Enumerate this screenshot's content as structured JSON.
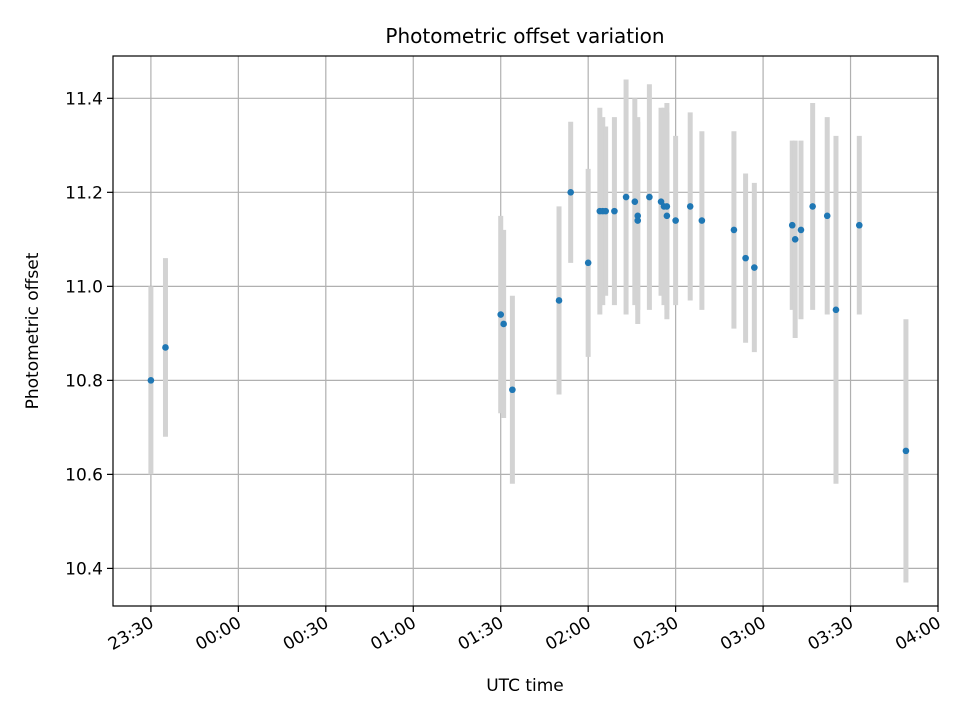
{
  "chart_data": {
    "type": "scatter",
    "title": "Photometric offset variation",
    "xlabel": "UTC time",
    "ylabel": "Photometric offset",
    "x_tick_labels": [
      "23:30",
      "00:00",
      "00:30",
      "01:00",
      "01:30",
      "02:00",
      "02:30",
      "03:00",
      "03:30",
      "04:00"
    ],
    "y_ticks": [
      10.4,
      10.6,
      10.8,
      11.0,
      11.2,
      11.4
    ],
    "y_tick_labels": [
      "10.4",
      "10.6",
      "10.8",
      "11.0",
      "11.2",
      "11.4"
    ],
    "xlim": [
      "23:17",
      "04:00"
    ],
    "ylim": [
      10.32,
      11.49
    ],
    "grid": true,
    "colors": {
      "points": "#1f77b4",
      "errorbars": "#d3d3d3",
      "grid": "#b0b0b0"
    },
    "points": [
      {
        "x": "23:30",
        "y": 10.8,
        "err": 0.2
      },
      {
        "x": "23:35",
        "y": 10.87,
        "err": 0.19
      },
      {
        "x": "01:30",
        "y": 10.94,
        "err": 0.21
      },
      {
        "x": "01:31",
        "y": 10.92,
        "err": 0.2
      },
      {
        "x": "01:34",
        "y": 10.78,
        "err": 0.2
      },
      {
        "x": "01:50",
        "y": 10.97,
        "err": 0.2
      },
      {
        "x": "01:54",
        "y": 11.2,
        "err": 0.15
      },
      {
        "x": "02:00",
        "y": 11.05,
        "err": 0.2
      },
      {
        "x": "02:04",
        "y": 11.16,
        "err": 0.22
      },
      {
        "x": "02:05",
        "y": 11.16,
        "err": 0.2
      },
      {
        "x": "02:06",
        "y": 11.16,
        "err": 0.18
      },
      {
        "x": "02:09",
        "y": 11.16,
        "err": 0.2
      },
      {
        "x": "02:13",
        "y": 11.19,
        "err": 0.25
      },
      {
        "x": "02:16",
        "y": 11.18,
        "err": 0.22
      },
      {
        "x": "02:17",
        "y": 11.15,
        "err": 0.2
      },
      {
        "x": "02:17",
        "y": 11.14,
        "err": 0.22
      },
      {
        "x": "02:21",
        "y": 11.19,
        "err": 0.24
      },
      {
        "x": "02:25",
        "y": 11.18,
        "err": 0.2
      },
      {
        "x": "02:26",
        "y": 11.17,
        "err": 0.21
      },
      {
        "x": "02:27",
        "y": 11.17,
        "err": 0.22
      },
      {
        "x": "02:27",
        "y": 11.15,
        "err": 0.22
      },
      {
        "x": "02:30",
        "y": 11.14,
        "err": 0.18
      },
      {
        "x": "02:35",
        "y": 11.17,
        "err": 0.2
      },
      {
        "x": "02:39",
        "y": 11.14,
        "err": 0.19
      },
      {
        "x": "02:50",
        "y": 11.12,
        "err": 0.21
      },
      {
        "x": "02:54",
        "y": 11.06,
        "err": 0.18
      },
      {
        "x": "02:57",
        "y": 11.04,
        "err": 0.18
      },
      {
        "x": "03:10",
        "y": 11.13,
        "err": 0.18
      },
      {
        "x": "03:11",
        "y": 11.1,
        "err": 0.21
      },
      {
        "x": "03:13",
        "y": 11.12,
        "err": 0.19
      },
      {
        "x": "03:17",
        "y": 11.17,
        "err": 0.22
      },
      {
        "x": "03:22",
        "y": 11.15,
        "err": 0.21
      },
      {
        "x": "03:25",
        "y": 10.95,
        "err": 0.37
      },
      {
        "x": "03:33",
        "y": 11.13,
        "err": 0.19
      },
      {
        "x": "03:49",
        "y": 10.65,
        "err": 0.28
      }
    ]
  }
}
